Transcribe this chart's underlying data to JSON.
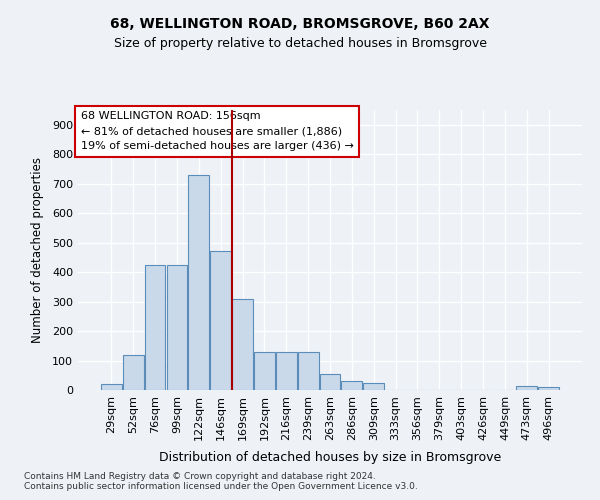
{
  "title1": "68, WELLINGTON ROAD, BROMSGROVE, B60 2AX",
  "title2": "Size of property relative to detached houses in Bromsgrove",
  "xlabel": "Distribution of detached houses by size in Bromsgrove",
  "ylabel": "Number of detached properties",
  "footnote1": "Contains HM Land Registry data © Crown copyright and database right 2024.",
  "footnote2": "Contains public sector information licensed under the Open Government Licence v3.0.",
  "annotation_line1": "68 WELLINGTON ROAD: 156sqm",
  "annotation_line2": "← 81% of detached houses are smaller (1,886)",
  "annotation_line3": "19% of semi-detached houses are larger (436) →",
  "bar_color": "#c9d9ea",
  "bar_edge_color": "#5b8db8",
  "vline_color": "#aa0000",
  "categories": [
    "29sqm",
    "52sqm",
    "76sqm",
    "99sqm",
    "122sqm",
    "146sqm",
    "169sqm",
    "192sqm",
    "216sqm",
    "239sqm",
    "263sqm",
    "286sqm",
    "309sqm",
    "333sqm",
    "356sqm",
    "379sqm",
    "403sqm",
    "426sqm",
    "449sqm",
    "473sqm",
    "496sqm"
  ],
  "values": [
    20,
    120,
    425,
    425,
    730,
    470,
    310,
    130,
    130,
    130,
    55,
    30,
    25,
    0,
    0,
    0,
    0,
    0,
    0,
    15,
    10
  ],
  "vline_x_index": 5.5,
  "ylim": [
    0,
    950
  ],
  "yticks": [
    0,
    100,
    200,
    300,
    400,
    500,
    600,
    700,
    800,
    900
  ],
  "background_color": "#eef2f7",
  "grid_color": "#d0d8e4"
}
